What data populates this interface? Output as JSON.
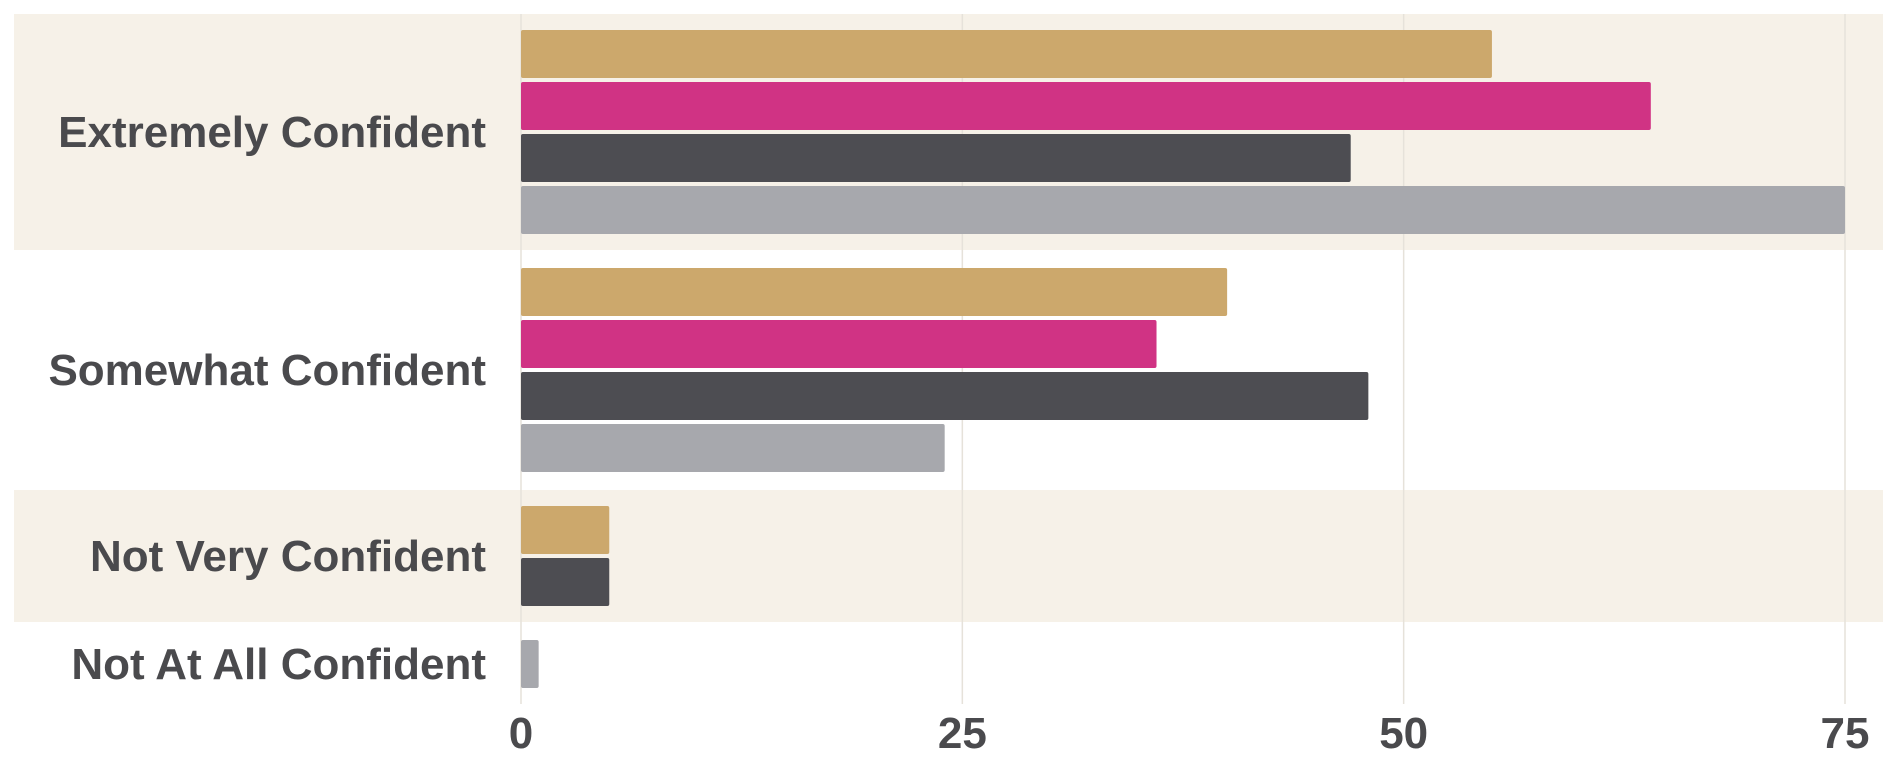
{
  "chart_data": {
    "type": "bar",
    "orientation": "horizontal",
    "categories": [
      "Extremely Confident",
      "Somewhat Confident",
      "Not Very Confident",
      "Not At All Confident"
    ],
    "series": [
      {
        "color": "#cca86c",
        "values": [
          55,
          40,
          5,
          null
        ]
      },
      {
        "color": "#d03384",
        "values": [
          64,
          36,
          null,
          null
        ]
      },
      {
        "color": "#4d4d52",
        "values": [
          47,
          48,
          5,
          null
        ]
      },
      {
        "color": "#a7a8ad",
        "values": [
          75,
          24,
          null,
          1
        ]
      }
    ],
    "xlim": [
      0,
      75
    ],
    "xticks": [
      "0",
      "25",
      "50",
      "75"
    ],
    "grid": true,
    "band_color": "#f6f1e8",
    "title": "",
    "xlabel": "",
    "ylabel": ""
  }
}
